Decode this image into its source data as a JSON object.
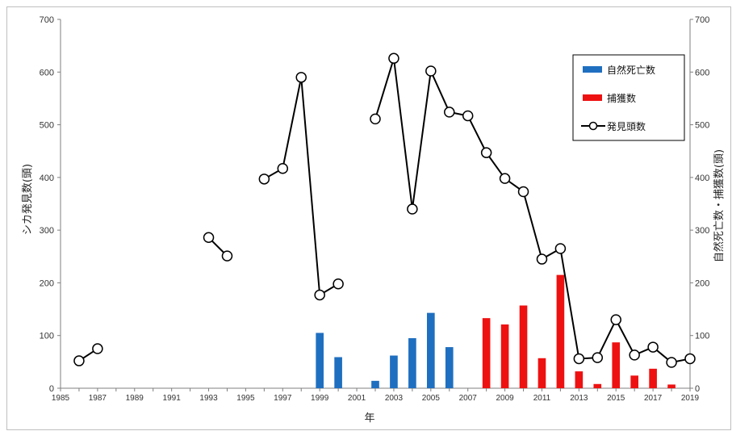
{
  "chart_data": {
    "type": "bar",
    "title": "",
    "xlabel": "年",
    "ylabel_left": "シカ発見数(頭)",
    "ylabel_right": "自然死亡数・捕獲数(頭)",
    "ylim_left": [
      0,
      700
    ],
    "ylim_right": [
      0,
      700
    ],
    "yticks": [
      0,
      100,
      200,
      300,
      400,
      500,
      600,
      700
    ],
    "xlim": [
      1985,
      2019
    ],
    "xtick_labels": [
      "1985",
      "1987",
      "1989",
      "1991",
      "1993",
      "1995",
      "1997",
      "1999",
      "2001",
      "2003",
      "2005",
      "2007",
      "2009",
      "2011",
      "2013",
      "2015",
      "2017",
      "2019"
    ],
    "legend_position": "top-right",
    "series": [
      {
        "name": "自然死亡数",
        "kind": "bar",
        "axis": "right",
        "color": "#1f6fc0",
        "points": [
          [
            1999,
            105
          ],
          [
            2000,
            59
          ],
          [
            2002,
            14
          ],
          [
            2003,
            62
          ],
          [
            2004,
            95
          ],
          [
            2005,
            143
          ],
          [
            2006,
            78
          ]
        ]
      },
      {
        "name": "捕獲数",
        "kind": "bar",
        "axis": "right",
        "color": "#ee1111",
        "points": [
          [
            2008,
            133
          ],
          [
            2009,
            121
          ],
          [
            2010,
            157
          ],
          [
            2011,
            57
          ],
          [
            2012,
            215
          ],
          [
            2013,
            32
          ],
          [
            2014,
            8
          ],
          [
            2015,
            87
          ],
          [
            2016,
            24
          ],
          [
            2017,
            37
          ],
          [
            2018,
            7
          ]
        ]
      },
      {
        "name": "発見頭数",
        "kind": "line",
        "axis": "left",
        "color": "#000000",
        "segments": [
          [
            [
              1986,
              52
            ],
            [
              1987,
              75
            ]
          ],
          [
            [
              1993,
              286
            ],
            [
              1994,
              251
            ]
          ],
          [
            [
              1996,
              397
            ],
            [
              1997,
              417
            ],
            [
              1998,
              590
            ],
            [
              1999,
              177
            ],
            [
              2000,
              198
            ]
          ],
          [
            [
              2002,
              511
            ],
            [
              2003,
              626
            ],
            [
              2004,
              340
            ],
            [
              2005,
              602
            ],
            [
              2006,
              524
            ],
            [
              2007,
              517
            ],
            [
              2008,
              447
            ],
            [
              2009,
              398
            ],
            [
              2010,
              373
            ],
            [
              2011,
              245
            ],
            [
              2012,
              265
            ],
            [
              2013,
              56
            ],
            [
              2014,
              58
            ],
            [
              2015,
              130
            ],
            [
              2016,
              63
            ],
            [
              2017,
              78
            ],
            [
              2018,
              49
            ],
            [
              2019,
              56
            ]
          ]
        ]
      }
    ]
  }
}
